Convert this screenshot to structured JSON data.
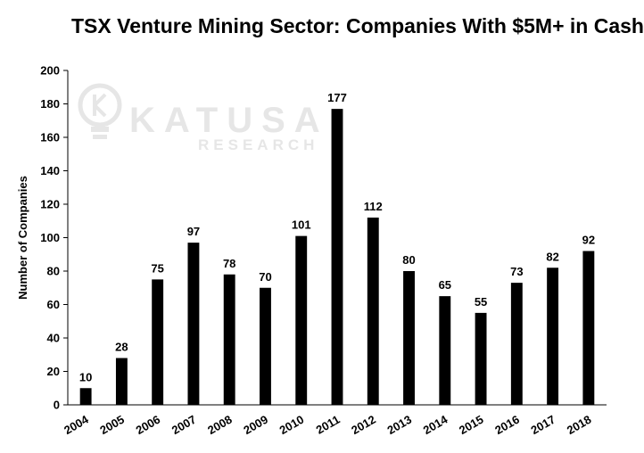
{
  "chart_data": {
    "type": "bar",
    "title": "TSX Venture Mining Sector: Companies With $5M+ in Cash",
    "xlabel": "",
    "ylabel": "Number of Companies",
    "categories": [
      "2004",
      "2005",
      "2006",
      "2007",
      "2008",
      "2009",
      "2010",
      "2011",
      "2012",
      "2013",
      "2014",
      "2015",
      "2016",
      "2017",
      "2018"
    ],
    "values": [
      10,
      28,
      75,
      97,
      78,
      70,
      101,
      177,
      112,
      80,
      65,
      55,
      73,
      82,
      92
    ],
    "ylim": [
      0,
      200
    ],
    "yticks": [
      0,
      20,
      40,
      60,
      80,
      100,
      120,
      140,
      160,
      180,
      200
    ],
    "grid": false,
    "legend": "none",
    "bar_color": "#000000",
    "watermark": {
      "brand": "KATUSA",
      "sub": "RESEARCH",
      "color": "#e6e6e6"
    }
  }
}
